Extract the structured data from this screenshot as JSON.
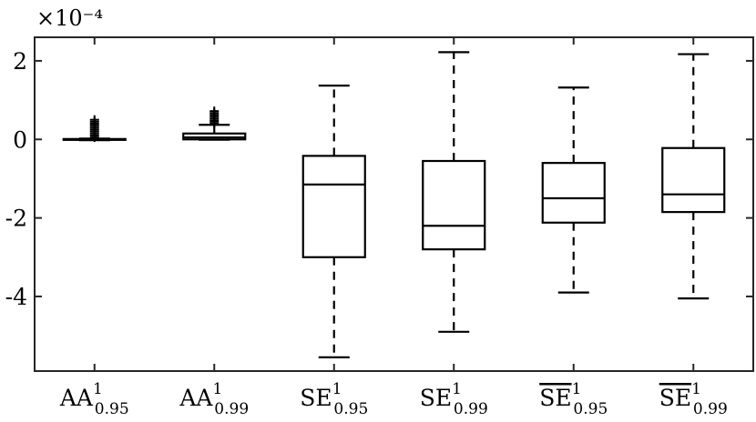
{
  "chart_data": {
    "type": "box",
    "exponent_label": "×10⁻⁴",
    "ylim": [
      -5.9,
      2.6
    ],
    "yticks": [
      -4,
      -2,
      0,
      2
    ],
    "ytick_labels": [
      "-4",
      "-2",
      "0",
      "2"
    ],
    "grid": false,
    "categories": [
      {
        "base": "AA",
        "sup": "1",
        "sub": "0.95",
        "overline": false
      },
      {
        "base": "AA",
        "sup": "1",
        "sub": "0.99",
        "overline": false
      },
      {
        "base": "SE",
        "sup": "1",
        "sub": "0.95",
        "overline": false
      },
      {
        "base": "SE",
        "sup": "1",
        "sub": "0.99",
        "overline": false
      },
      {
        "base": "SE",
        "sup": "1",
        "sub": "0.95",
        "overline": true
      },
      {
        "base": "SE",
        "sup": "1",
        "sub": "0.99",
        "overline": true
      }
    ],
    "boxes": [
      {
        "whisker_low": -0.02,
        "q1": -0.01,
        "median": 0.0,
        "q3": 0.01,
        "whisker_high": 0.02,
        "outliers": [
          0.05,
          0.1,
          0.15,
          0.2,
          0.25,
          0.3,
          0.35,
          0.4,
          0.45,
          0.5
        ]
      },
      {
        "whisker_low": -0.01,
        "q1": 0.0,
        "median": 0.05,
        "q3": 0.15,
        "whisker_high": 0.37,
        "outliers": [
          0.42,
          0.47,
          0.52,
          0.57,
          0.62,
          0.67,
          0.72
        ]
      },
      {
        "whisker_low": -5.55,
        "q1": -3.0,
        "median": -1.15,
        "q3": -0.42,
        "whisker_high": 1.37,
        "outliers": []
      },
      {
        "whisker_low": -4.9,
        "q1": -2.8,
        "median": -2.2,
        "q3": -0.55,
        "whisker_high": 2.22,
        "outliers": []
      },
      {
        "whisker_low": -3.9,
        "q1": -2.12,
        "median": -1.5,
        "q3": -0.6,
        "whisker_high": 1.32,
        "outliers": []
      },
      {
        "whisker_low": -4.05,
        "q1": -1.85,
        "median": -1.4,
        "q3": -0.22,
        "whisker_high": 2.17,
        "outliers": []
      }
    ]
  }
}
